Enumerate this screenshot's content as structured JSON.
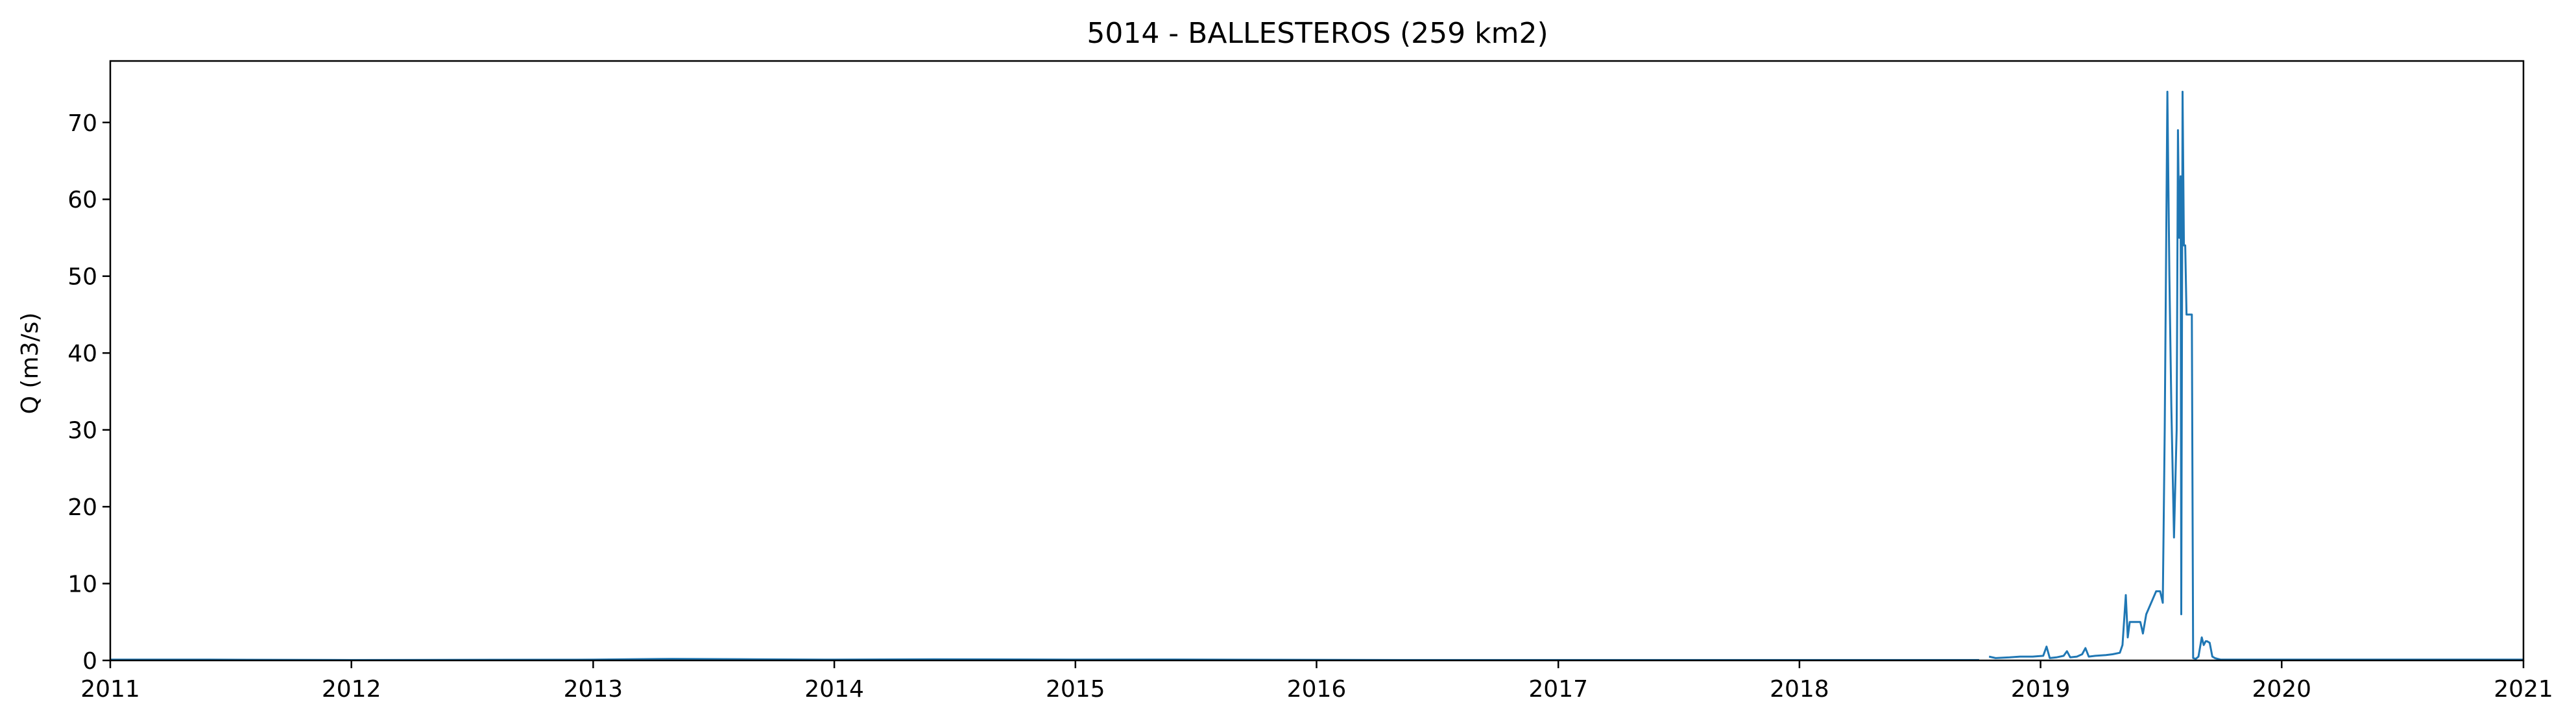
{
  "chart_data": {
    "type": "line",
    "title": "5014 - BALLESTEROS (259 km2)",
    "xlabel": "",
    "ylabel": "Q (m3/s)",
    "xlim": [
      "2011-01-01",
      "2021-01-01"
    ],
    "ylim": [
      0,
      78
    ],
    "x_ticks": [
      "2011",
      "2012",
      "2013",
      "2014",
      "2015",
      "2016",
      "2017",
      "2018",
      "2019",
      "2020",
      "2021"
    ],
    "y_ticks": [
      0,
      10,
      20,
      30,
      40,
      50,
      60,
      70
    ],
    "grid": false,
    "line_color": "#1f77b4",
    "series": [
      {
        "segments": [
          {
            "x": [
              "2011-01-01",
              "2011-06-01",
              "2012-01-01",
              "2012-06-01",
              "2013-01-01",
              "2013-05-01",
              "2013-09-01",
              "2014-01-01",
              "2014-06-01",
              "2015-01-01",
              "2015-06-01",
              "2016-01-01",
              "2016-06-01",
              "2017-01-01",
              "2017-06-01",
              "2018-01-01",
              "2018-06-01",
              "2018-09-30"
            ],
            "y": [
              0.1,
              0.1,
              0.05,
              0.08,
              0.1,
              0.2,
              0.15,
              0.1,
              0.15,
              0.1,
              0.12,
              0.08,
              0.05,
              0.05,
              0.05,
              0.05,
              0.05,
              0.05
            ]
          },
          {
            "x": [
              "2018-10-15",
              "2018-10-25",
              "2018-11-15",
              "2018-12-01",
              "2018-12-20",
              "2019-01-05",
              "2019-01-10",
              "2019-01-15",
              "2019-01-25",
              "2019-02-05",
              "2019-02-10",
              "2019-02-15",
              "2019-02-25",
              "2019-03-05",
              "2019-03-10",
              "2019-03-15",
              "2019-03-25",
              "2019-04-10",
              "2019-04-20",
              "2019-05-01",
              "2019-05-05",
              "2019-05-10",
              "2019-05-13",
              "2019-05-16",
              "2019-05-20",
              "2019-06-01",
              "2019-06-05",
              "2019-06-10",
              "2019-06-20",
              "2019-06-25",
              "2019-07-01",
              "2019-07-05",
              "2019-07-08",
              "2019-07-12",
              "2019-07-15",
              "2019-07-18",
              "2019-07-22",
              "2019-07-26",
              "2019-07-28",
              "2019-07-30",
              "2019-08-01",
              "2019-08-02",
              "2019-08-04",
              "2019-08-06",
              "2019-08-08",
              "2019-08-10",
              "2019-08-12",
              "2019-08-14",
              "2019-08-16",
              "2019-08-18",
              "2019-08-20",
              "2019-08-24",
              "2019-08-28",
              "2019-09-02",
              "2019-09-05",
              "2019-09-08",
              "2019-09-10",
              "2019-09-14",
              "2019-09-18",
              "2019-09-22",
              "2019-09-26",
              "2019-10-01",
              "2019-10-06",
              "2019-10-10",
              "2019-10-15",
              "2019-11-01",
              "2019-12-01",
              "2020-01-01",
              "2020-06-01",
              "2020-12-01",
              "2021-01-01"
            ],
            "y": [
              0.5,
              0.3,
              0.4,
              0.5,
              0.5,
              0.6,
              1.8,
              0.3,
              0.4,
              0.6,
              1.2,
              0.4,
              0.5,
              0.8,
              1.6,
              0.5,
              0.6,
              0.7,
              0.8,
              1.0,
              2.0,
              8.5,
              3.0,
              5.0,
              5.0,
              5.0,
              3.5,
              6.0,
              8.0,
              9.0,
              9.0,
              7.5,
              30.0,
              74.0,
              50.0,
              33.0,
              16.0,
              30.0,
              69.0,
              55.0,
              63.0,
              6.0,
              74.0,
              54.0,
              54.0,
              45.0,
              45.0,
              45.0,
              45.0,
              45.0,
              0.3,
              0.2,
              0.5,
              3.0,
              2.0,
              2.5,
              2.5,
              2.3,
              0.5,
              0.3,
              0.2,
              0.1,
              0.1,
              0.1,
              0.1,
              0.1,
              0.1,
              0.1,
              0.1,
              0.1,
              0.1
            ]
          }
        ]
      }
    ]
  }
}
